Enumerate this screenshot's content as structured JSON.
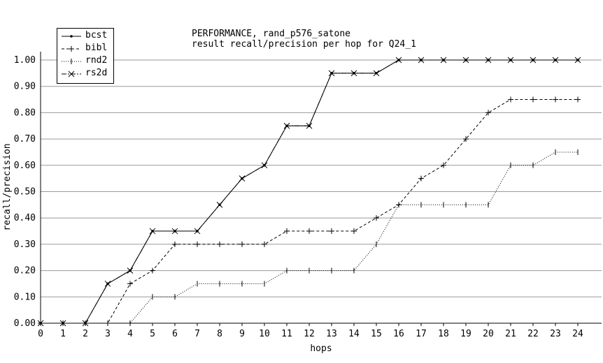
{
  "chart_data": {
    "type": "line",
    "title_lines": [
      "PERFORMANCE, rand_p576_satone",
      "result recall/precision per hop for Q24_1"
    ],
    "xlabel": "hops",
    "ylabel": "recall/precision",
    "xlim": [
      0,
      24
    ],
    "ylim": [
      0,
      1.0
    ],
    "x": [
      0,
      1,
      2,
      3,
      4,
      5,
      6,
      7,
      8,
      9,
      10,
      11,
      12,
      13,
      14,
      15,
      16,
      17,
      18,
      19,
      20,
      21,
      22,
      23,
      24
    ],
    "y_ticks": [
      "0.00",
      "0.10",
      "0.20",
      "0.30",
      "0.40",
      "0.50",
      "0.60",
      "0.70",
      "0.80",
      "0.90",
      "1.00"
    ],
    "x_ticks": [
      "0",
      "1",
      "2",
      "3",
      "4",
      "5",
      "6",
      "7",
      "8",
      "9",
      "10",
      "11",
      "12",
      "13",
      "14",
      "15",
      "16",
      "17",
      "18",
      "19",
      "20",
      "21",
      "22",
      "23",
      "24"
    ],
    "grid": "horizontal",
    "legend_position": "top-left",
    "series": [
      {
        "name": "bcst",
        "dash": "solid",
        "marker": "dot",
        "values": [
          0,
          0,
          0,
          0.15,
          0.2,
          0.35,
          0.35,
          0.35,
          0.45,
          0.55,
          0.6,
          0.75,
          0.75,
          0.95,
          0.95,
          0.95,
          1.0,
          1.0,
          1.0,
          1.0,
          1.0,
          1.0,
          1.0,
          1.0,
          1.0
        ]
      },
      {
        "name": "bibl",
        "dash": "dashed",
        "marker": "plus",
        "values": [
          0,
          0,
          0,
          0,
          0.15,
          0.2,
          0.3,
          0.3,
          0.3,
          0.3,
          0.3,
          0.35,
          0.35,
          0.35,
          0.35,
          0.4,
          0.45,
          0.55,
          0.6,
          0.7,
          0.8,
          0.85,
          0.85,
          0.85,
          0.85
        ]
      },
      {
        "name": "rnd2",
        "dash": "dotted",
        "marker": "vtick",
        "values": [
          0,
          0,
          0,
          0,
          0,
          0.1,
          0.1,
          0.15,
          0.15,
          0.15,
          0.15,
          0.2,
          0.2,
          0.2,
          0.2,
          0.3,
          0.45,
          0.45,
          0.45,
          0.45,
          0.45,
          0.6,
          0.6,
          0.65,
          0.65
        ]
      },
      {
        "name": "rs2d",
        "dash": "dashdot",
        "marker": "xcross",
        "values": [
          0,
          0,
          0,
          0.15,
          0.2,
          0.35,
          0.35,
          0.35,
          0.45,
          0.55,
          0.6,
          0.75,
          0.75,
          0.95,
          0.95,
          0.95,
          1.0,
          1.0,
          1.0,
          1.0,
          1.0,
          1.0,
          1.0,
          1.0,
          1.0
        ]
      }
    ]
  }
}
